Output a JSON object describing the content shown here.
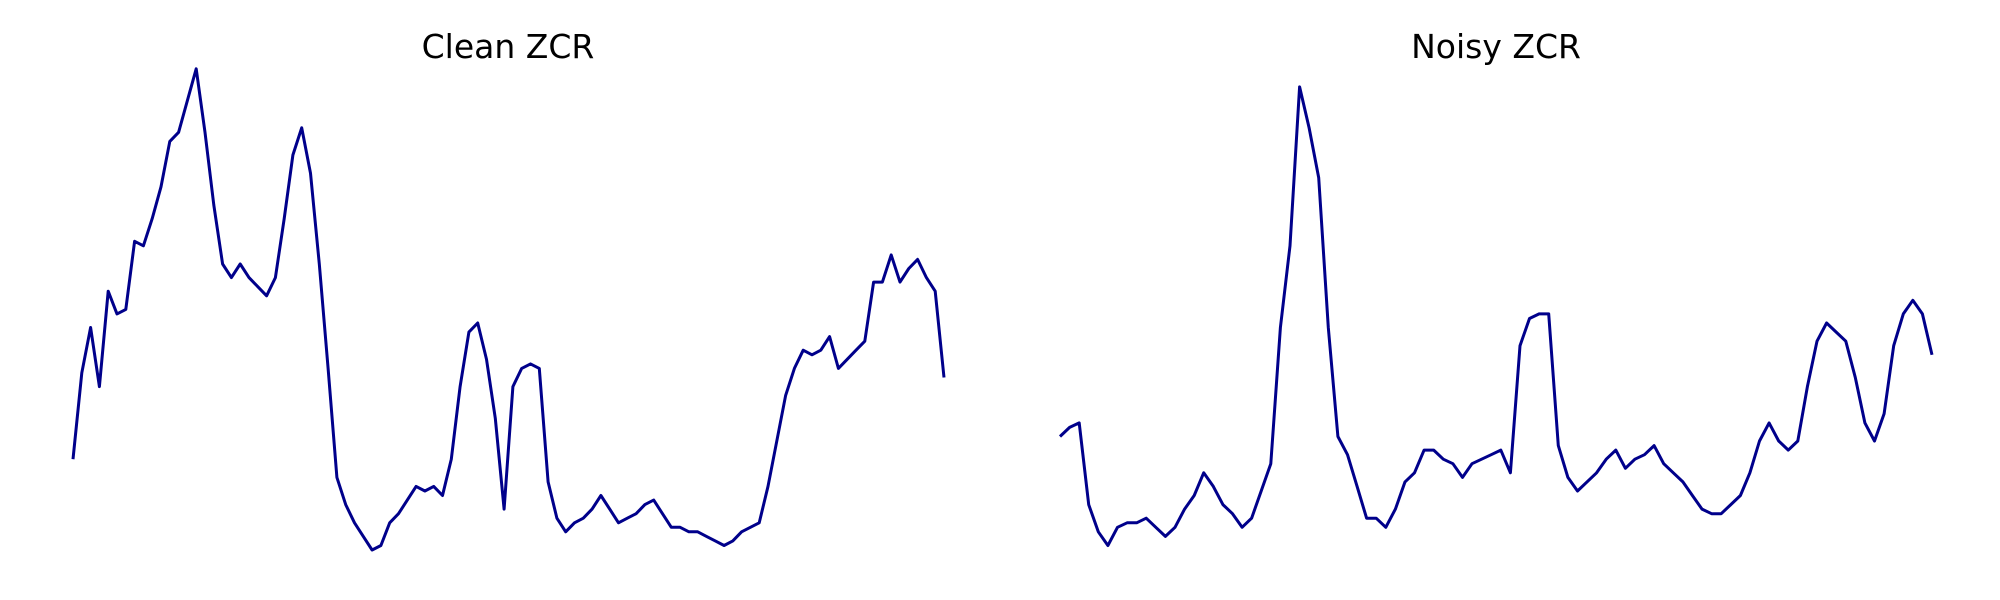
{
  "chart_data": [
    {
      "type": "line",
      "title": "Clean ZCR",
      "xlabel": "",
      "ylabel": "",
      "axes": false,
      "grid": false,
      "color": "#00008b",
      "ylim": [
        0,
        1
      ],
      "values": [
        0.2,
        0.39,
        0.49,
        0.36,
        0.57,
        0.52,
        0.53,
        0.68,
        0.67,
        0.73,
        0.8,
        0.9,
        0.92,
        0.99,
        1.06,
        0.92,
        0.76,
        0.63,
        0.6,
        0.63,
        0.6,
        0.58,
        0.56,
        0.6,
        0.73,
        0.87,
        0.93,
        0.83,
        0.63,
        0.4,
        0.16,
        0.1,
        0.06,
        0.03,
        0.0,
        0.01,
        0.06,
        0.08,
        0.11,
        0.14,
        0.13,
        0.14,
        0.12,
        0.2,
        0.36,
        0.48,
        0.5,
        0.42,
        0.29,
        0.09,
        0.36,
        0.4,
        0.41,
        0.4,
        0.15,
        0.07,
        0.04,
        0.06,
        0.07,
        0.09,
        0.12,
        0.09,
        0.06,
        0.07,
        0.08,
        0.1,
        0.11,
        0.08,
        0.05,
        0.05,
        0.04,
        0.04,
        0.03,
        0.02,
        0.01,
        0.02,
        0.04,
        0.05,
        0.06,
        0.14,
        0.24,
        0.34,
        0.4,
        0.44,
        0.43,
        0.44,
        0.47,
        0.4,
        0.42,
        0.44,
        0.46,
        0.59,
        0.59,
        0.65,
        0.59,
        0.62,
        0.64,
        0.6,
        0.57,
        0.38
      ]
    },
    {
      "type": "line",
      "title": "Noisy ZCR",
      "xlabel": "",
      "ylabel": "",
      "axes": false,
      "grid": false,
      "color": "#00008b",
      "ylim": [
        0,
        1
      ],
      "values": [
        0.25,
        0.27,
        0.28,
        0.1,
        0.04,
        0.01,
        0.05,
        0.06,
        0.06,
        0.07,
        0.05,
        0.03,
        0.05,
        0.09,
        0.12,
        0.17,
        0.14,
        0.1,
        0.08,
        0.05,
        0.07,
        0.13,
        0.19,
        0.49,
        0.67,
        1.02,
        0.93,
        0.82,
        0.49,
        0.25,
        0.21,
        0.14,
        0.07,
        0.07,
        0.05,
        0.09,
        0.15,
        0.17,
        0.22,
        0.22,
        0.2,
        0.19,
        0.16,
        0.19,
        0.2,
        0.21,
        0.22,
        0.17,
        0.45,
        0.51,
        0.52,
        0.52,
        0.23,
        0.16,
        0.13,
        0.15,
        0.17,
        0.2,
        0.22,
        0.18,
        0.2,
        0.21,
        0.23,
        0.19,
        0.17,
        0.15,
        0.12,
        0.09,
        0.08,
        0.08,
        0.1,
        0.12,
        0.17,
        0.24,
        0.28,
        0.24,
        0.22,
        0.24,
        0.36,
        0.46,
        0.5,
        0.48,
        0.46,
        0.38,
        0.28,
        0.24,
        0.3,
        0.45,
        0.52,
        0.55,
        0.52,
        0.43
      ]
    }
  ]
}
